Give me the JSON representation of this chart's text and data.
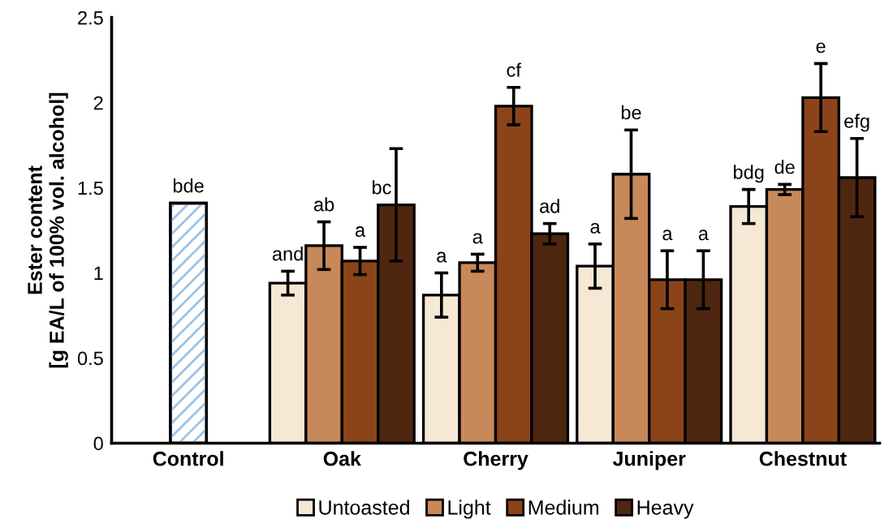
{
  "chart_data": {
    "type": "bar",
    "ylabel": "Ester content\n[g EA/L of 100% vol. alcohol]",
    "categories": [
      "Control",
      "Oak",
      "Cherry",
      "Juniper",
      "Chestnut"
    ],
    "ylim": [
      0,
      2.5
    ],
    "yticks": [
      0,
      {
        "value": 0.5,
        "label": "0.5"
      },
      1,
      {
        "value": 1.5,
        "label": "1.5"
      },
      2,
      {
        "value": 2.5,
        "label": "2.5"
      }
    ],
    "grid": false,
    "legend": "bottom",
    "series": [
      {
        "color": "#9dc3e6",
        "values": [
          1.41,
          null,
          null,
          null,
          null
        ],
        "errors": [
          null,
          null,
          null,
          null,
          null
        ],
        "value_labels": [
          "bde",
          null,
          null,
          null,
          null
        ]
      },
      {
        "name": "Untoasted",
        "color": "#f5e8d5",
        "values": [
          null,
          0.94,
          0.87,
          1.04,
          1.39
        ],
        "errors": [
          null,
          0.07,
          0.13,
          0.13,
          0.1
        ],
        "value_labels": [
          null,
          "and",
          "a",
          "a",
          "bdg"
        ]
      },
      {
        "name": "Light",
        "color": "#c8895a",
        "values": [
          null,
          1.16,
          1.06,
          1.58,
          1.49
        ],
        "errors": [
          null,
          0.14,
          0.05,
          0.26,
          0.03
        ],
        "value_labels": [
          null,
          "ab",
          "a",
          "be",
          "de"
        ]
      },
      {
        "name": "Medium",
        "color": "#8b4419",
        "values": [
          null,
          1.07,
          1.98,
          0.96,
          2.03
        ],
        "errors": [
          null,
          0.08,
          0.11,
          0.17,
          0.2
        ],
        "value_labels": [
          null,
          "a",
          "cf",
          "a",
          "e"
        ]
      },
      {
        "name": "Heavy",
        "color": "#4f2610",
        "values": [
          null,
          1.4,
          1.23,
          0.96,
          1.56
        ],
        "errors": [
          null,
          0.33,
          0.06,
          0.17,
          0.23
        ],
        "value_labels": [
          null,
          "bc",
          "ad",
          "a",
          "efg"
        ]
      }
    ]
  }
}
